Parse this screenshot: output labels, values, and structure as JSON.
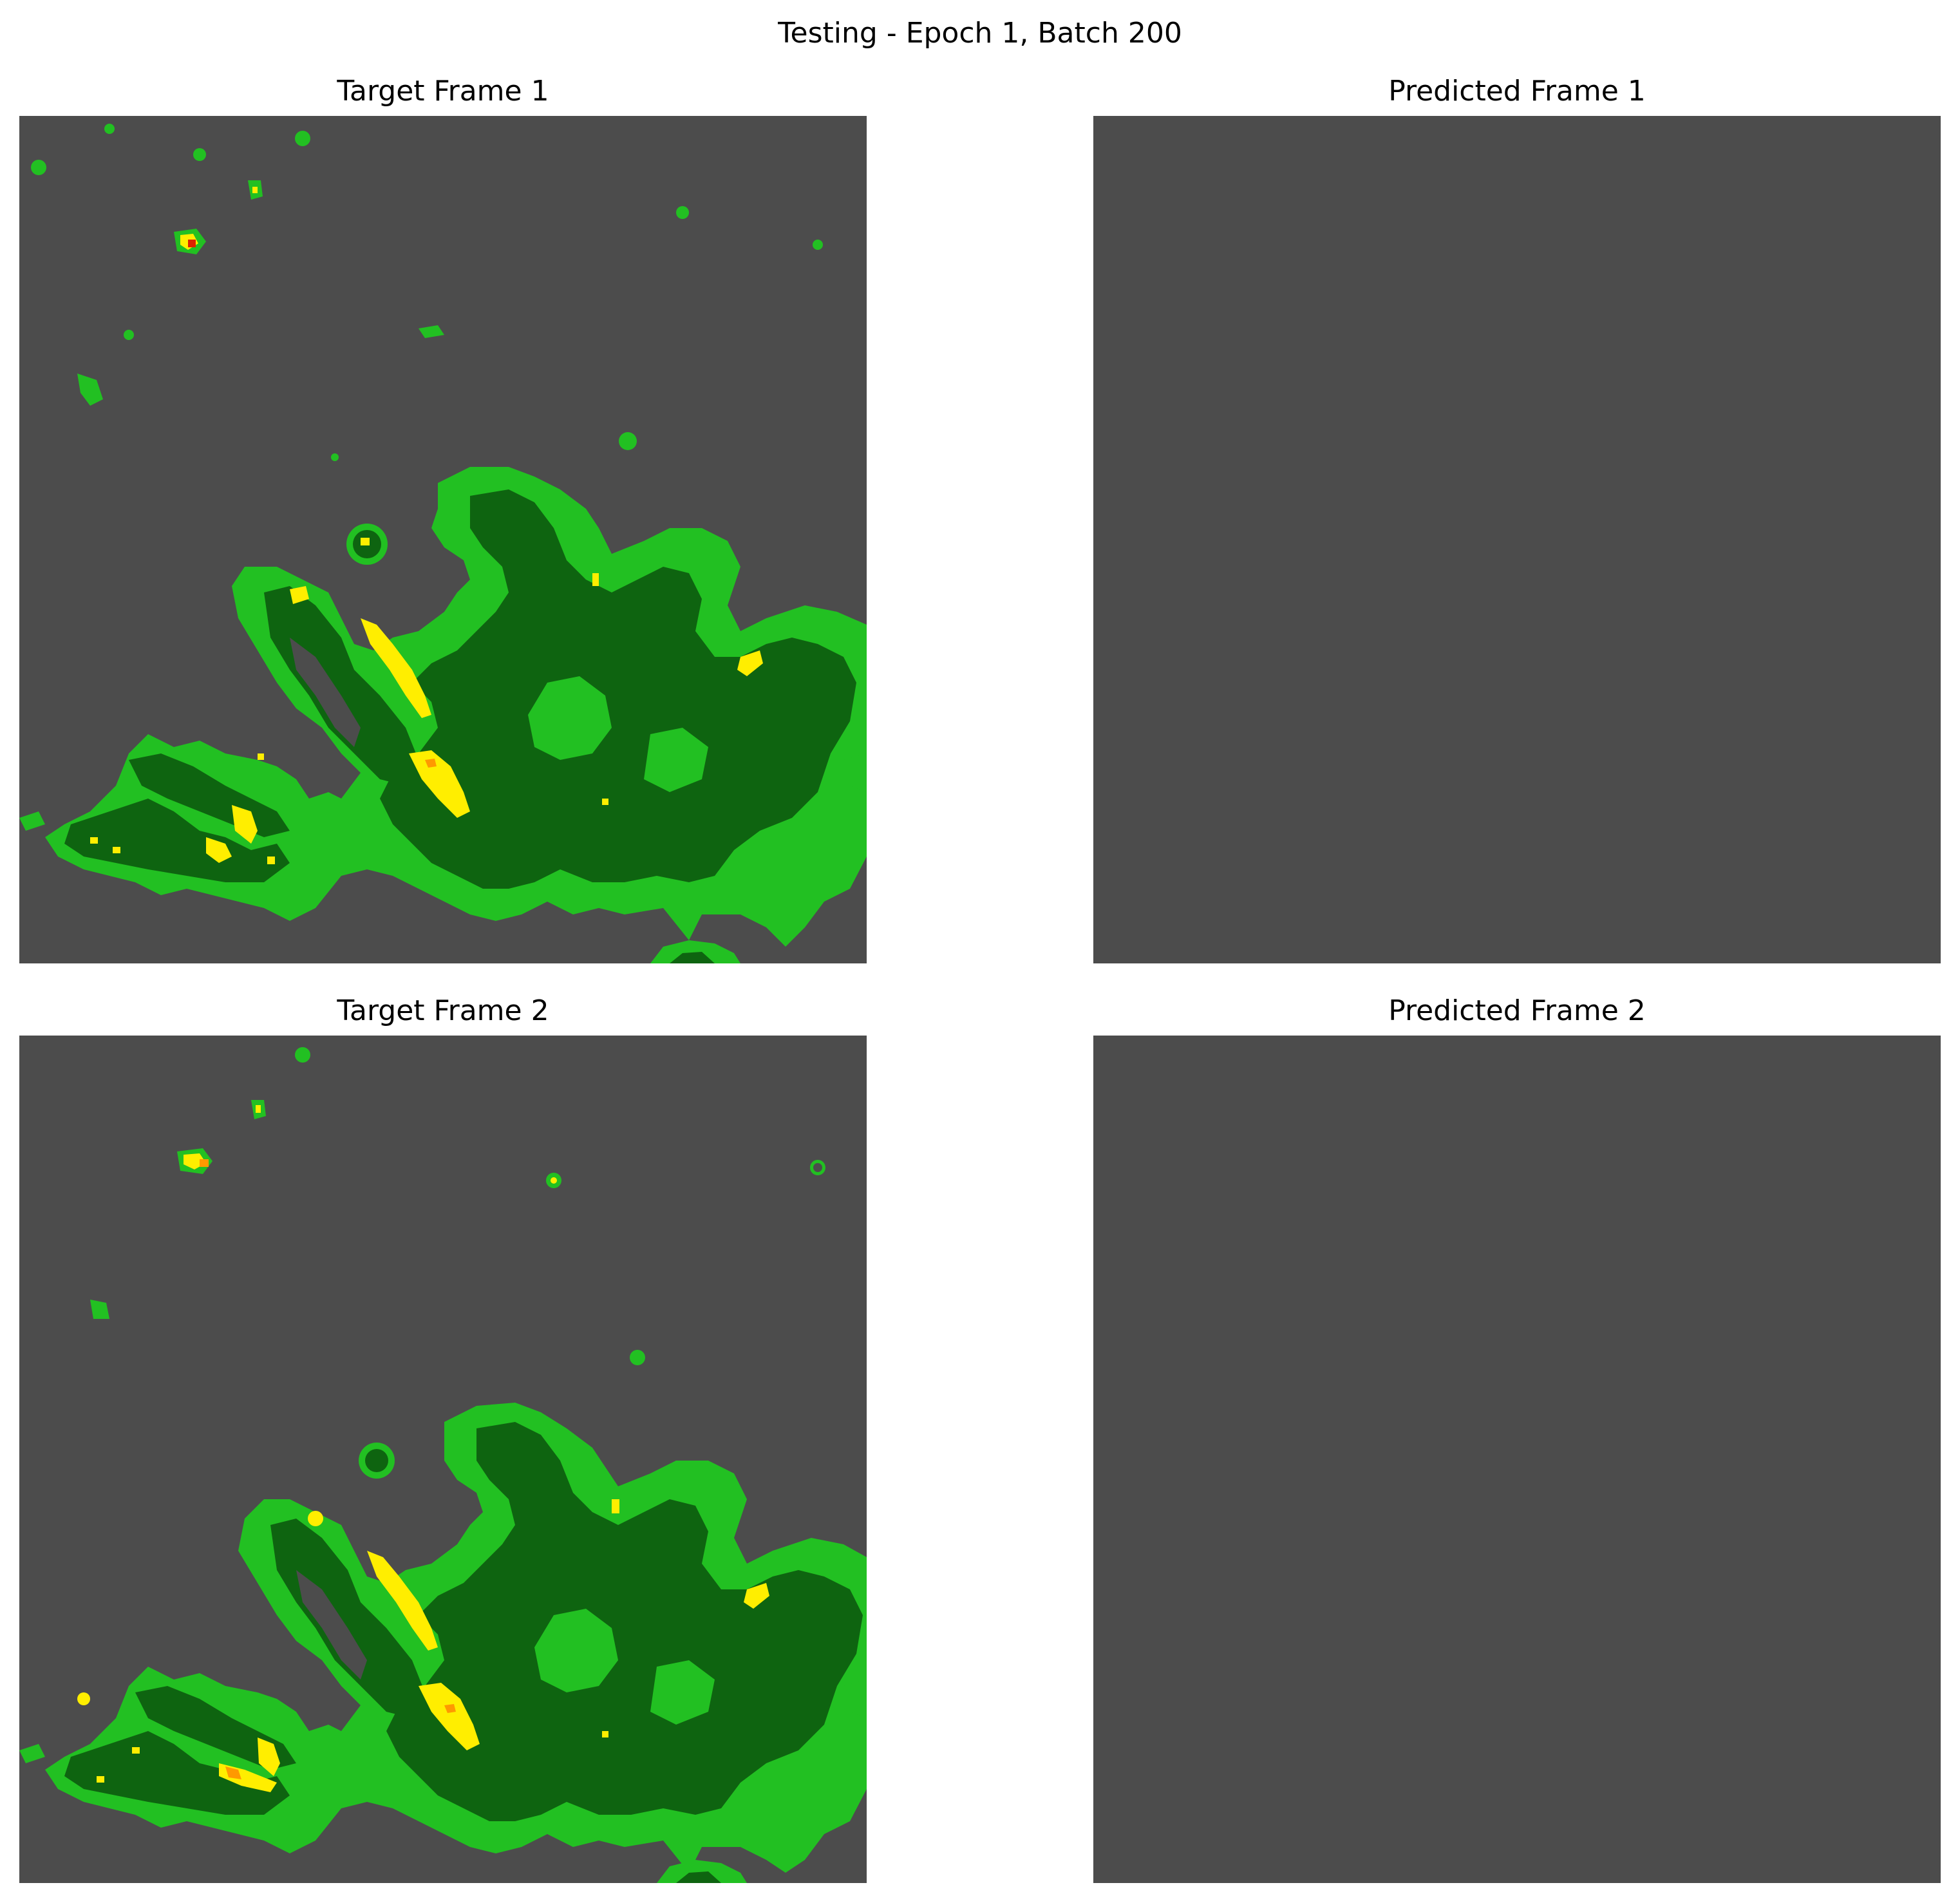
{
  "figure": {
    "title": "Testing - Epoch 1, Batch 200",
    "background_gray": "#4c4c4c"
  },
  "panels": [
    {
      "title": "Target Frame 1",
      "content": "radar"
    },
    {
      "title": "Predicted Frame 1",
      "content": "empty"
    },
    {
      "title": "Target Frame 2",
      "content": "radar"
    },
    {
      "title": "Predicted Frame 2",
      "content": "empty"
    }
  ],
  "colormap": {
    "light_green": "#22c022",
    "dark_green": "#0e6410",
    "yellow": "#ffee00",
    "orange": "#ff9900",
    "red": "#dd2200"
  }
}
